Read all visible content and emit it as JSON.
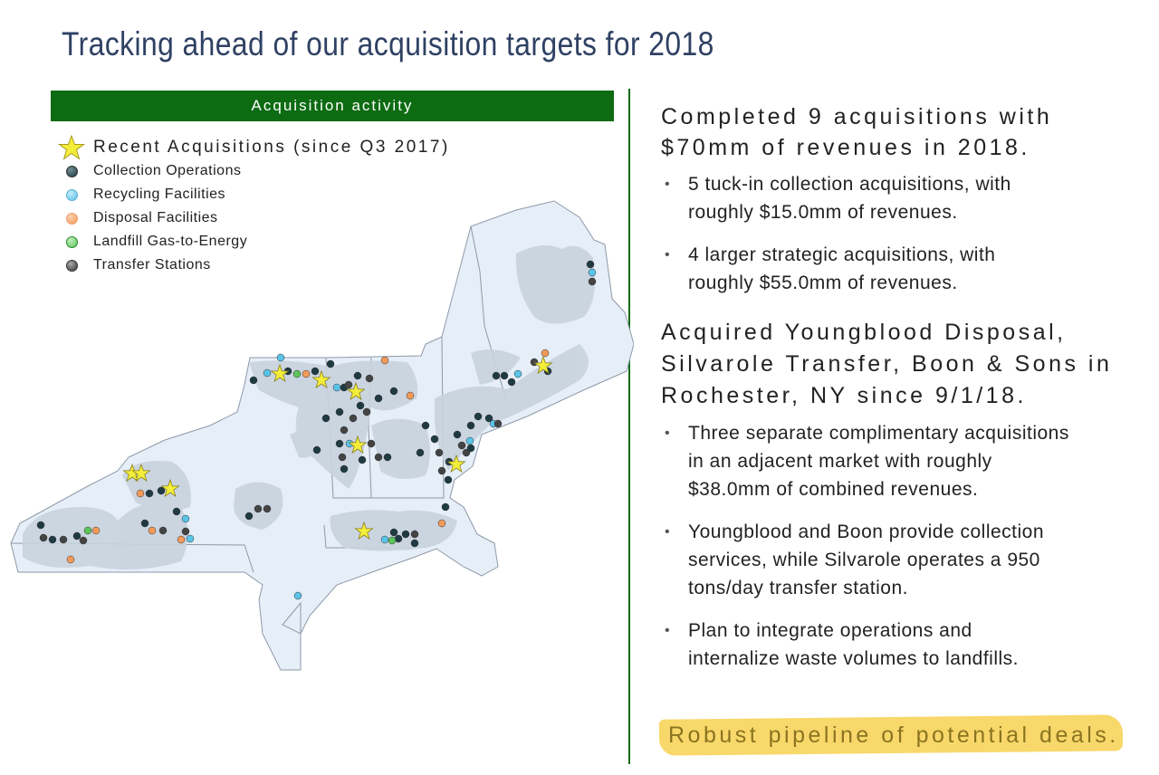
{
  "title": "Tracking ahead of our acquisition targets for 2018",
  "panel": {
    "banner": "Acquisition activity",
    "legend": [
      {
        "label": "Recent Acquisitions (since Q3 2017)",
        "icon": "star-icon",
        "color": "#f4ee3a"
      },
      {
        "label": "Collection Operations",
        "icon": "dot-icon",
        "color": "#1f3a42"
      },
      {
        "label": "Recycling Facilities",
        "icon": "dot-icon",
        "color": "#5ac3e8"
      },
      {
        "label": "Disposal Facilities",
        "icon": "dot-icon",
        "color": "#f39a5a"
      },
      {
        "label": "Landfill Gas-to-Energy",
        "icon": "dot-icon",
        "color": "#5cc45a"
      },
      {
        "label": "Transfer Stations",
        "icon": "dot-icon",
        "color": "#444444"
      }
    ]
  },
  "right": {
    "heading1": "Completed 9 acquisitions with $70mm of revenues in 2018.",
    "bullets1": [
      "5 tuck-in collection acquisitions, with roughly $15.0mm of revenues.",
      "4 larger strategic acquisitions, with roughly $55.0mm of revenues."
    ],
    "heading2": "Acquired Youngblood Disposal, Silvarole Transfer, Boon & Sons in Rochester, NY since 9/1/18.",
    "bullets2": [
      "Three separate complimentary acquisitions in an adjacent market with roughly $38.0mm of combined revenues.",
      "Youngblood and Boon provide collection services, while Silvarole operates a 950 tons/day transfer station.",
      "Plan to integrate operations and internalize waste volumes to landfills."
    ],
    "pipeline": "Robust pipeline of potential deals."
  },
  "colors": {
    "banner": "#0d6b12",
    "title": "#2f4163",
    "highlight": "#f8d86a",
    "map_land": "#e6eef8",
    "map_service": "#c9d3de"
  }
}
